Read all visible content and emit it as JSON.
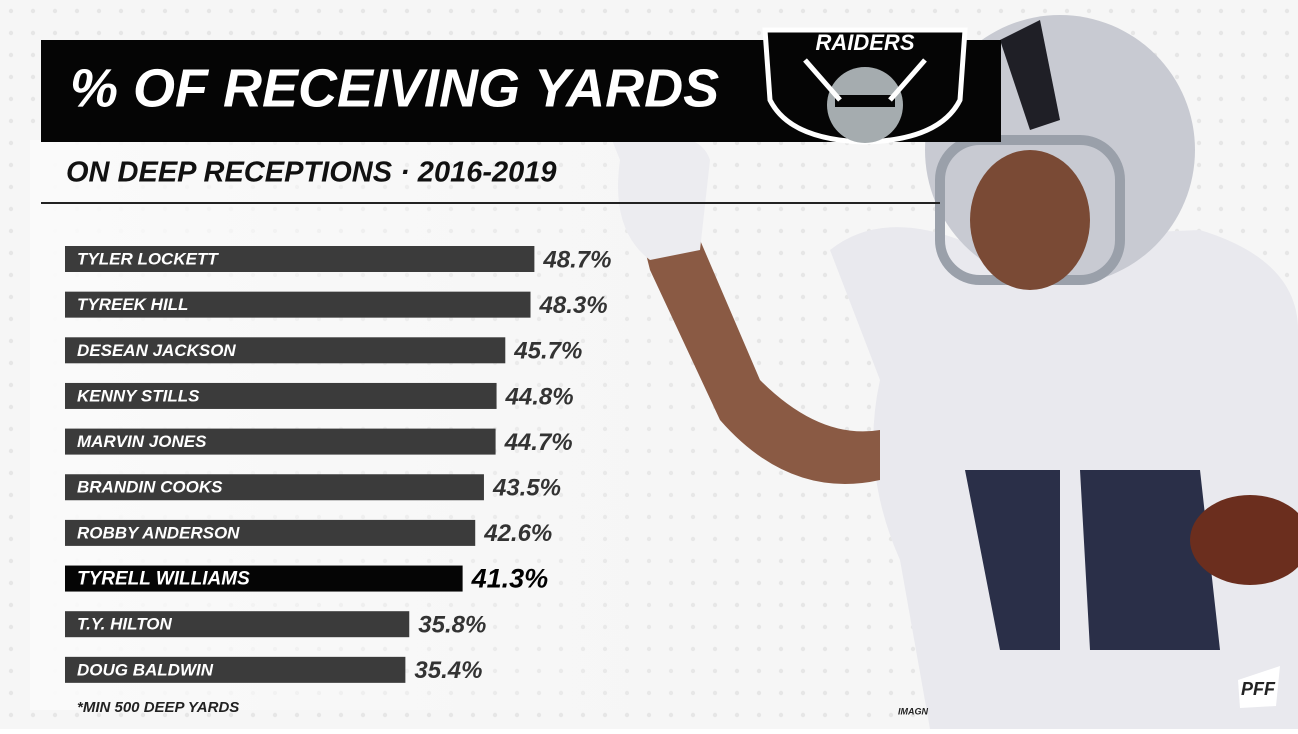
{
  "chart_data": {
    "type": "bar",
    "title": "% OF RECEIVING YARDS",
    "subtitle": "ON DEEP RECEPTIONS · 2016-2019",
    "categories": [
      "TYLER LOCKETT",
      "TYREEK HILL",
      "DESEAN JACKSON",
      "KENNY STILLS",
      "MARVIN JONES",
      "BRANDIN COOKS",
      "ROBBY ANDERSON",
      "TYRELL WILLIAMS",
      "T.Y. HILTON",
      "DOUG BALDWIN"
    ],
    "values": [
      48.7,
      48.3,
      45.7,
      44.8,
      44.7,
      43.5,
      42.6,
      41.3,
      35.8,
      35.4
    ],
    "value_labels": [
      "48.7%",
      "48.3%",
      "45.7%",
      "44.8%",
      "44.7%",
      "43.5%",
      "42.6%",
      "41.3%",
      "35.8%",
      "35.4%"
    ],
    "colors": [
      "#3b3b3b",
      "#3b3b3b",
      "#3b3b3b",
      "#3b3b3b",
      "#3b3b3b",
      "#3b3b3b",
      "#3b3b3b",
      "#050505",
      "#3b3b3b",
      "#3b3b3b"
    ],
    "footnote": "*MIN 500 DEEP YARDS",
    "team": "RAIDERS",
    "credit": "IMAGN",
    "brand": "PFF"
  }
}
